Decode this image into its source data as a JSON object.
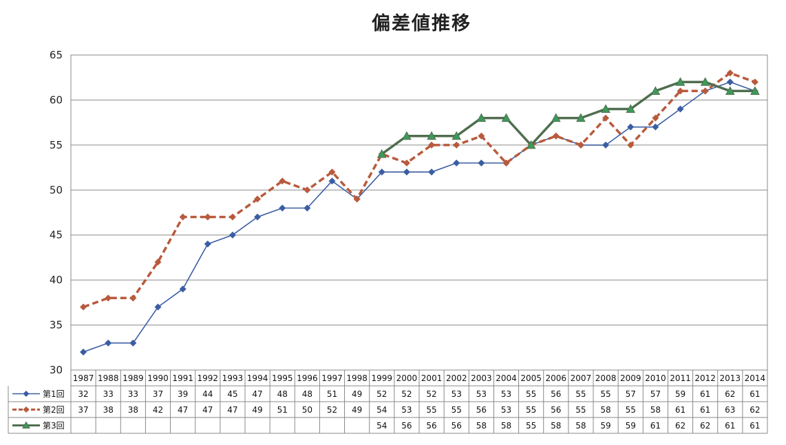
{
  "chart_data": {
    "type": "line",
    "title": "偏差値推移",
    "xlabel": "",
    "ylabel": "",
    "ylim": [
      30,
      65
    ],
    "yticks": [
      30,
      35,
      40,
      45,
      50,
      55,
      60,
      65
    ],
    "grid": true,
    "legend": "data-table",
    "categories": [
      "1987",
      "1988",
      "1989",
      "1990",
      "1991",
      "1992",
      "1993",
      "1994",
      "1995",
      "1996",
      "1997",
      "1998",
      "1999",
      "2000",
      "2001",
      "2002",
      "2003",
      "2004",
      "2005",
      "2006",
      "2007",
      "2008",
      "2009",
      "2010",
      "2011",
      "2012",
      "2013",
      "2014"
    ],
    "series": [
      {
        "name": "第1回",
        "color": "#3b5da3",
        "style": "solid",
        "marker": "diamond",
        "values": [
          32,
          33,
          33,
          37,
          39,
          44,
          45,
          47,
          48,
          48,
          51,
          49,
          52,
          52,
          52,
          53,
          53,
          53,
          55,
          56,
          55,
          55,
          57,
          57,
          59,
          61,
          62,
          61
        ]
      },
      {
        "name": "第2回",
        "color": "#b85a3c",
        "style": "dashed",
        "marker": "diamond",
        "values": [
          37,
          38,
          38,
          42,
          47,
          47,
          47,
          49,
          51,
          50,
          52,
          49,
          54,
          53,
          55,
          55,
          56,
          53,
          55,
          56,
          55,
          58,
          55,
          58,
          61,
          61,
          63,
          62
        ]
      },
      {
        "name": "第3回",
        "color": "#4f6e4f",
        "style": "solid",
        "marker": "triangle",
        "marker_color": "#3e9a5a",
        "values": [
          null,
          null,
          null,
          null,
          null,
          null,
          null,
          null,
          null,
          null,
          null,
          null,
          54,
          56,
          56,
          56,
          58,
          58,
          55,
          58,
          58,
          59,
          59,
          61,
          62,
          62,
          61,
          61
        ]
      }
    ]
  }
}
